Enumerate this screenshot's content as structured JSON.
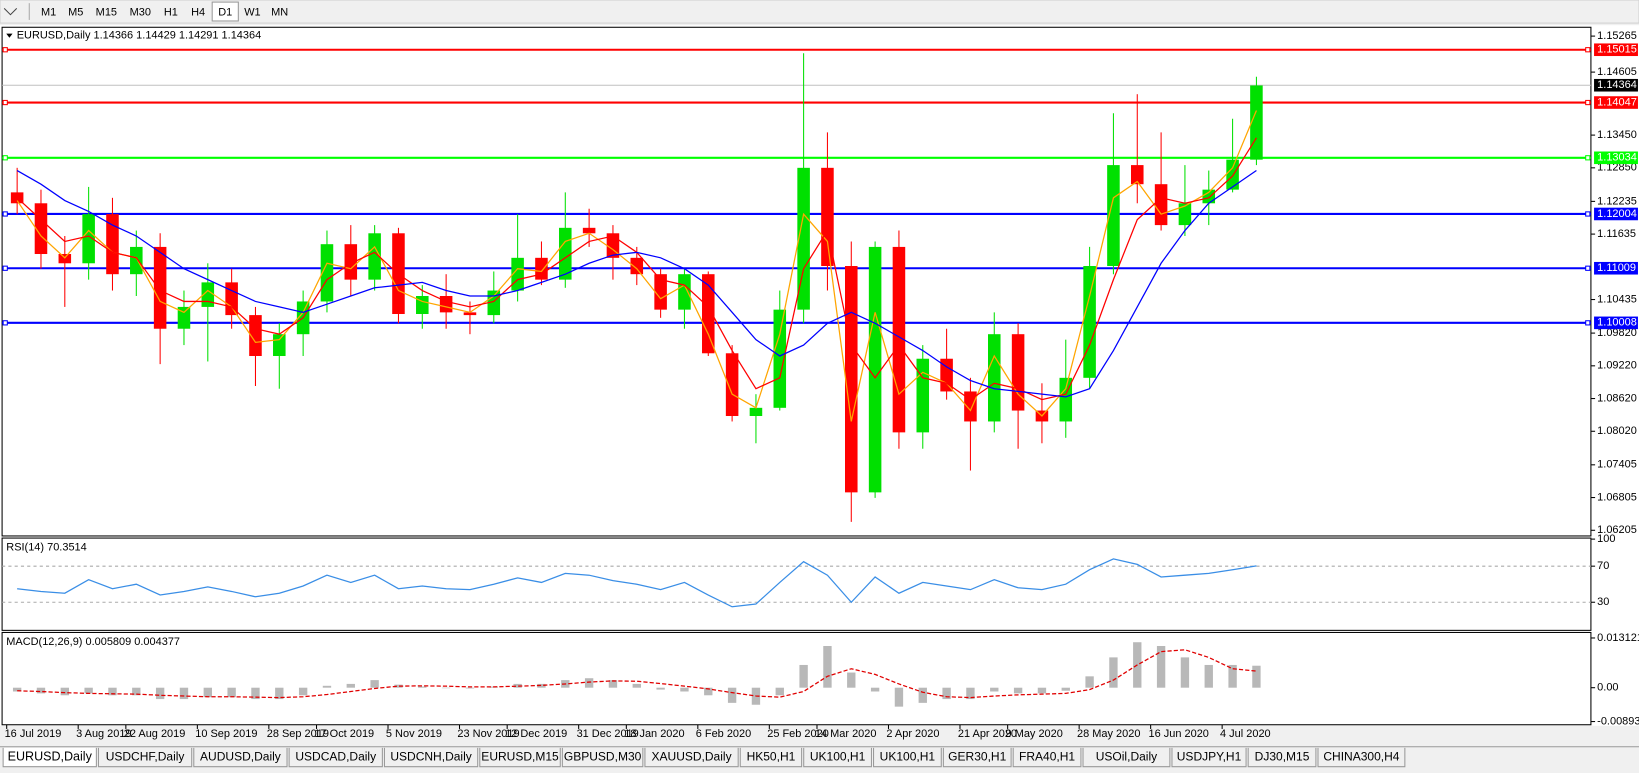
{
  "toolbar": {
    "timeframes": [
      "M1",
      "M5",
      "M15",
      "M30",
      "H1",
      "H4",
      "D1",
      "W1",
      "MN"
    ],
    "active": "D1"
  },
  "chart_data": [
    {
      "type": "candlestick",
      "title": "EURUSD,Daily  1.14366 1.14429 1.14291 1.14364",
      "categories": [
        "16 Jul 2019",
        null,
        null,
        "3 Aug 2019",
        null,
        "22 Aug 2019",
        null,
        null,
        "10 Sep 2019",
        null,
        null,
        "28 Sep 2019",
        null,
        "17 Oct 2019",
        null,
        null,
        "5 Nov 2019",
        null,
        null,
        "23 Nov 2019",
        null,
        "12 Dec 2019",
        null,
        null,
        "31 Dec 2019",
        null,
        "18 Jan 2020",
        null,
        null,
        "6 Feb 2020",
        null,
        null,
        "25 Feb 2020",
        null,
        "14 Mar 2020",
        null,
        null,
        "2 Apr 2020",
        null,
        null,
        "21 Apr 2020",
        null,
        "9 May 2020",
        null,
        null,
        "28 May 2020",
        null,
        null,
        "16 Jun 2020",
        null,
        null,
        "4 Jul 2020",
        null
      ],
      "candles": [
        [
          1.124,
          1.1285,
          1.12,
          1.122
        ],
        [
          1.122,
          1.1245,
          1.11,
          1.1127
        ],
        [
          1.1127,
          1.116,
          1.103,
          1.111
        ],
        [
          1.111,
          1.125,
          1.108,
          1.12
        ],
        [
          1.12,
          1.123,
          1.106,
          1.109
        ],
        [
          1.109,
          1.117,
          1.105,
          1.114
        ],
        [
          1.114,
          1.1165,
          1.0925,
          1.099
        ],
        [
          1.099,
          1.106,
          1.096,
          1.103
        ],
        [
          1.103,
          1.111,
          1.093,
          1.1075
        ],
        [
          1.1075,
          1.11,
          1.099,
          1.1015
        ],
        [
          1.1015,
          1.103,
          1.0885,
          1.094
        ],
        [
          1.094,
          1.1,
          1.088,
          1.098
        ],
        [
          1.098,
          1.106,
          1.094,
          1.104
        ],
        [
          1.104,
          1.117,
          1.102,
          1.1145
        ],
        [
          1.1145,
          1.118,
          1.105,
          1.108
        ],
        [
          1.108,
          1.118,
          1.106,
          1.1165
        ],
        [
          1.1165,
          1.1175,
          1.1,
          1.1017
        ],
        [
          1.1017,
          1.107,
          1.099,
          1.105
        ],
        [
          1.105,
          1.109,
          1.099,
          1.102
        ],
        [
          1.102,
          1.104,
          1.098,
          1.1015
        ],
        [
          1.1015,
          1.1095,
          1.1,
          1.106
        ],
        [
          1.106,
          1.12,
          1.104,
          1.112
        ],
        [
          1.112,
          1.115,
          1.107,
          1.108
        ],
        [
          1.108,
          1.124,
          1.1065,
          1.1175
        ],
        [
          1.1175,
          1.121,
          1.114,
          1.1165
        ],
        [
          1.1165,
          1.118,
          1.108,
          1.112
        ],
        [
          1.112,
          1.114,
          1.107,
          1.109
        ],
        [
          1.109,
          1.11,
          1.101,
          1.1025
        ],
        [
          1.1025,
          1.11,
          1.099,
          1.109
        ],
        [
          1.109,
          1.1095,
          1.094,
          1.0945
        ],
        [
          1.0945,
          1.096,
          1.082,
          1.083
        ],
        [
          1.083,
          1.087,
          1.078,
          1.0845
        ],
        [
          1.0845,
          1.106,
          1.084,
          1.1025
        ],
        [
          1.1025,
          1.1495,
          1.1,
          1.1285
        ],
        [
          1.1285,
          1.135,
          1.106,
          1.1105
        ],
        [
          1.1105,
          1.115,
          1.0636,
          1.069
        ],
        [
          1.069,
          1.115,
          1.068,
          1.114
        ],
        [
          1.114,
          1.117,
          1.077,
          1.08
        ],
        [
          1.08,
          1.096,
          1.077,
          1.0935
        ],
        [
          1.0935,
          1.099,
          1.086,
          1.0875
        ],
        [
          1.0875,
          1.09,
          1.073,
          1.082
        ],
        [
          1.082,
          1.102,
          1.08,
          1.098
        ],
        [
          1.098,
          1.1,
          1.077,
          1.084
        ],
        [
          1.084,
          1.089,
          1.078,
          1.082
        ],
        [
          1.082,
          1.097,
          1.079,
          1.09
        ],
        [
          1.09,
          1.114,
          1.088,
          1.1105
        ],
        [
          1.1105,
          1.1385,
          1.109,
          1.129
        ],
        [
          1.129,
          1.142,
          1.122,
          1.1255
        ],
        [
          1.1255,
          1.135,
          1.117,
          1.118
        ],
        [
          1.118,
          1.129,
          1.116,
          1.122
        ],
        [
          1.122,
          1.128,
          1.118,
          1.1245
        ],
        [
          1.1245,
          1.1375,
          1.124,
          1.13
        ],
        [
          1.13,
          1.1452,
          1.129,
          1.1436
        ]
      ],
      "up_color": "#00e000",
      "down_color": "#ff0000",
      "series": [
        {
          "color": "#ffa500",
          "values": [
            1.1225,
            1.116,
            1.112,
            1.117,
            1.113,
            1.112,
            1.104,
            1.102,
            1.106,
            1.103,
            1.0965,
            1.097,
            1.102,
            1.111,
            1.11,
            1.114,
            1.106,
            1.104,
            1.103,
            1.102,
            1.105,
            1.11,
            1.1095,
            1.115,
            1.1165,
            1.1135,
            1.11,
            1.1045,
            1.107,
            1.098,
            1.087,
            1.0845,
            1.098,
            1.12,
            1.115,
            1.082,
            1.102,
            1.087,
            1.091,
            1.089,
            1.084,
            1.094,
            1.087,
            1.083,
            1.088,
            1.105,
            1.123,
            1.126,
            1.12,
            1.1215,
            1.124,
            1.1285,
            1.139
          ]
        },
        {
          "color": "#ff0000",
          "values": [
            1.123,
            1.119,
            1.115,
            1.116,
            1.113,
            1.112,
            1.106,
            1.104,
            1.104,
            1.103,
            1.099,
            1.098,
            1.101,
            1.108,
            1.111,
            1.113,
            1.109,
            1.106,
            1.104,
            1.103,
            1.104,
            1.108,
            1.109,
            1.112,
            1.115,
            1.116,
            1.113,
            1.108,
            1.107,
            1.103,
            1.095,
            1.088,
            1.09,
            1.11,
            1.117,
            1.096,
            1.09,
            1.096,
            1.09,
            1.089,
            1.086,
            1.089,
            1.088,
            1.086,
            1.087,
            1.096,
            1.108,
            1.119,
            1.123,
            1.122,
            1.123,
            1.127,
            1.134
          ]
        },
        {
          "color": "#0000ff",
          "values": [
            1.128,
            1.1255,
            1.1225,
            1.1205,
            1.118,
            1.116,
            1.113,
            1.11,
            1.108,
            1.106,
            1.104,
            1.103,
            1.102,
            1.1035,
            1.105,
            1.1065,
            1.107,
            1.1075,
            1.106,
            1.105,
            1.105,
            1.106,
            1.1075,
            1.109,
            1.111,
            1.1125,
            1.113,
            1.112,
            1.11,
            1.107,
            1.102,
            1.097,
            1.094,
            1.096,
            1.1,
            1.102,
            1.1,
            1.0975,
            1.095,
            1.092,
            1.0895,
            1.088,
            1.0875,
            1.087,
            1.0865,
            1.088,
            1.095,
            1.103,
            1.111,
            1.117,
            1.122,
            1.125,
            1.128
          ]
        }
      ],
      "ylim": [
        1.0612,
        1.1535
      ],
      "yticks": [
        1.15265,
        1.14605,
        {
          "value": 1.1345,
          "label": "1.13450"
        },
        {
          "value": 1.1285,
          "label": "1.12850"
        },
        1.12235,
        1.11635,
        1.10435,
        {
          "value": 1.0982,
          "label": "1.09820"
        },
        {
          "value": 1.0922,
          "label": "1.09220"
        },
        {
          "value": 1.0862,
          "label": "1.08620"
        },
        {
          "value": 1.0802,
          "label": "1.08020"
        },
        1.07405,
        1.06805,
        1.06205
      ],
      "levels": [
        {
          "value": 1.15015,
          "color": "#ff0000"
        },
        {
          "value": 1.14047,
          "color": "#ff0000"
        },
        {
          "value": 1.13034,
          "color": "#00ff00"
        },
        {
          "value": 1.12004,
          "color": "#0000ff"
        },
        {
          "value": 1.11009,
          "color": "#0000ff"
        },
        {
          "value": 1.10008,
          "color": "#0000ff"
        }
      ],
      "current_price": {
        "value": 1.14364,
        "color": "#c0c0c0"
      }
    },
    {
      "type": "line",
      "title": "RSI(14) 70.3514",
      "series": [
        {
          "color": "#3a8ee6",
          "values": [
            45,
            42,
            40,
            55,
            45,
            50,
            38,
            42,
            47,
            42,
            36,
            40,
            48,
            60,
            52,
            60,
            45,
            48,
            45,
            44,
            50,
            57,
            52,
            62,
            60,
            54,
            50,
            44,
            52,
            38,
            25,
            28,
            52,
            75,
            60,
            30,
            58,
            40,
            52,
            48,
            44,
            55,
            46,
            44,
            50,
            66,
            78,
            72,
            58,
            60,
            62,
            66,
            70.35
          ]
        }
      ],
      "ylim": [
        0,
        100
      ],
      "yticks": [
        100,
        70,
        30
      ],
      "levels": [
        70,
        30
      ]
    },
    {
      "type": "macd",
      "title": "MACD(12,26,9) 0.005809 0.004377",
      "histogram": {
        "color": "#b8b8b8",
        "values": [
          -0.001,
          -0.0015,
          -0.002,
          -0.0015,
          -0.002,
          -0.002,
          -0.003,
          -0.003,
          -0.0025,
          -0.0025,
          -0.003,
          -0.003,
          -0.002,
          0.0005,
          0.001,
          0.002,
          0.0008,
          0.0003,
          0,
          -0.0002,
          0.0003,
          0.001,
          0.001,
          0.002,
          0.0025,
          0.002,
          0.001,
          -0.0005,
          -0.001,
          -0.002,
          -0.004,
          -0.0045,
          -0.002,
          0.006,
          0.011,
          0.004,
          -0.001,
          -0.005,
          -0.004,
          -0.003,
          -0.003,
          -0.001,
          -0.0015,
          -0.0015,
          -0.0008,
          0.003,
          0.008,
          0.012,
          0.011,
          0.008,
          0.006,
          0.006,
          0.0058
        ]
      },
      "signal": {
        "color": "#e00000",
        "values": [
          -0.0008,
          -0.001,
          -0.0013,
          -0.0015,
          -0.0016,
          -0.0017,
          -0.002,
          -0.0022,
          -0.0024,
          -0.0024,
          -0.0025,
          -0.0026,
          -0.0024,
          -0.0018,
          -0.001,
          -0.0002,
          0.0004,
          0.0005,
          0.0004,
          0.0002,
          0.0002,
          0.0004,
          0.0006,
          0.001,
          0.0015,
          0.0018,
          0.0017,
          0.0011,
          0.0004,
          -0.0003,
          -0.0013,
          -0.0022,
          -0.0025,
          -0.001,
          0.003,
          0.005,
          0.0035,
          0.001,
          -0.0012,
          -0.0024,
          -0.0026,
          -0.0022,
          -0.0019,
          -0.0017,
          -0.0015,
          -0.0005,
          0.002,
          0.006,
          0.0095,
          0.01,
          0.008,
          0.005,
          0.0044
        ]
      },
      "ylim": [
        -0.0095,
        0.0143
      ],
      "yticks": [
        0.013121,
        {
          "value": 0,
          "label": "0.00"
        },
        -0.008933
      ]
    }
  ],
  "tabs": {
    "items": [
      "EURUSD,Daily",
      "USDCHF,Daily",
      "AUDUSD,Daily",
      "USDCAD,Daily",
      "USDCNH,Daily",
      "EURUSD,M15",
      "GBPUSD,M30",
      "XAUUSD,Daily",
      "HK50,H1",
      "UK100,H1",
      "UK100,H1",
      "GER30,H1",
      "FRA40,H1",
      "USOil,Daily",
      "USDJPY,H1",
      "DJ30,M15",
      "CHINA300,H4"
    ],
    "active": "EURUSD,Daily"
  }
}
